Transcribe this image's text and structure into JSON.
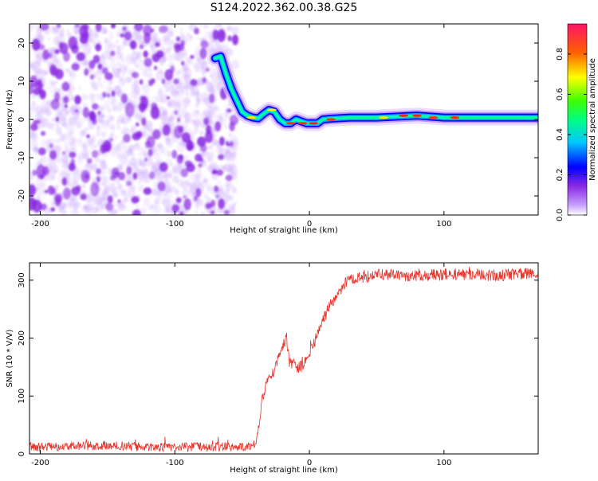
{
  "figure": {
    "title": "S124.2022.362.00.38.G25"
  },
  "chart_data": [
    {
      "type": "heatmap",
      "xlabel": "Height of straight line (km)",
      "ylabel": "Frequency (Hz)",
      "xlim": [
        -208,
        170
      ],
      "ylim": [
        -25,
        25
      ],
      "xticks": [
        -200,
        -100,
        0,
        100
      ],
      "yticks": [
        -20,
        -10,
        0,
        10,
        20
      ],
      "xtick_labels": [
        "-200",
        "-100",
        "0",
        "100"
      ],
      "ytick_labels": [
        "-20",
        "-10",
        "0",
        "10",
        "20"
      ],
      "grid": false,
      "colorbar": {
        "label": "Normalized spectral amplitude",
        "ticks": [
          0.0,
          0.2,
          0.4,
          0.6,
          0.8
        ],
        "tick_labels": [
          "0.0",
          "0.2",
          "0.4",
          "0.6",
          "0.8"
        ],
        "range": [
          0,
          0.95
        ],
        "colors": [
          "#ffffff",
          "#8a2be2",
          "#0000ff",
          "#00ffff",
          "#00ff00",
          "#ffff00",
          "#ff0000",
          "#ff1493"
        ]
      },
      "noise_region_x": [
        -208,
        -55
      ],
      "noise_color": "#8a2be2",
      "ridge": {
        "x": [
          -70,
          -66,
          -62,
          -58,
          -54,
          -50,
          -46,
          -42,
          -38,
          -34,
          -30,
          -26,
          -22,
          -18,
          -14,
          -10,
          -6,
          -2,
          2,
          6,
          10,
          16,
          30,
          50,
          80,
          100,
          120,
          140,
          170
        ],
        "y": [
          16,
          16.5,
          12,
          8,
          5,
          2,
          1,
          0.5,
          0.3,
          1.5,
          2.5,
          2,
          0,
          -1,
          -1,
          0,
          -0.5,
          -1,
          -1,
          -1,
          0,
          0.2,
          0.5,
          0.5,
          1,
          0.5,
          0.5,
          0.5,
          0.5
        ]
      }
    },
    {
      "type": "line",
      "xlabel": "Height of straight line (km)",
      "ylabel": "SNR (10 * V/V)",
      "xlim": [
        -208,
        170
      ],
      "ylim": [
        0,
        330
      ],
      "xticks": [
        -200,
        -100,
        0,
        100
      ],
      "yticks": [
        0,
        100,
        200,
        300
      ],
      "xtick_labels": [
        "-200",
        "-100",
        "0",
        "100"
      ],
      "ytick_labels": [
        "0",
        "100",
        "200",
        "300"
      ],
      "grid": false,
      "color": "#e8322a",
      "series": [
        {
          "x": [
            -208,
            -190,
            -170,
            -150,
            -130,
            -110,
            -90,
            -70,
            -55,
            -45,
            -40,
            -37,
            -35,
            -30,
            -25,
            -20,
            -17,
            -15,
            -10,
            -5,
            0,
            5,
            10,
            15,
            20,
            25,
            30,
            40,
            50,
            60,
            80,
            100,
            120,
            140,
            160,
            170
          ],
          "y": [
            12,
            12,
            14,
            15,
            13,
            12,
            12,
            12,
            12,
            14,
            20,
            60,
            100,
            130,
            150,
            185,
            200,
            160,
            150,
            150,
            175,
            200,
            230,
            255,
            275,
            290,
            300,
            305,
            310,
            308,
            308,
            310,
            310,
            308,
            312,
            310
          ],
          "noise_amplitude": 10
        }
      ]
    }
  ]
}
